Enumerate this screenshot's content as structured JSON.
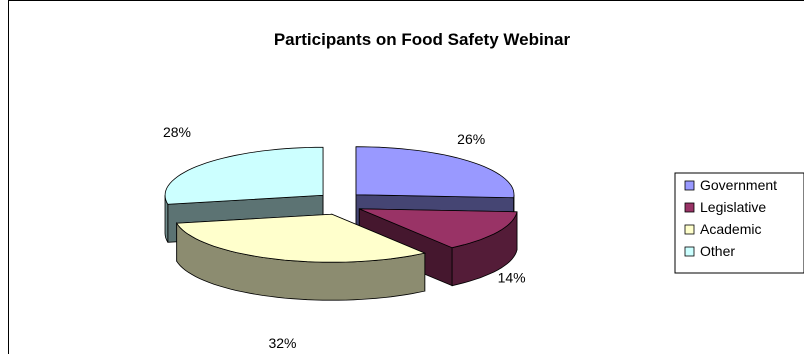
{
  "chart_data": {
    "type": "pie",
    "title": "Participants on Food Safety Webinar",
    "categories": [
      "Government",
      "Legislative",
      "Academic",
      "Other"
    ],
    "values": [
      26,
      14,
      32,
      28
    ],
    "value_labels": [
      "26%",
      "14%",
      "32%",
      "28%"
    ],
    "legend": "right",
    "colors": {
      "Government": "#9999ff",
      "Legislative": "#993366",
      "Academic": "#ffffcc",
      "Other": "#ccffff"
    },
    "style": "3d-exploded"
  }
}
